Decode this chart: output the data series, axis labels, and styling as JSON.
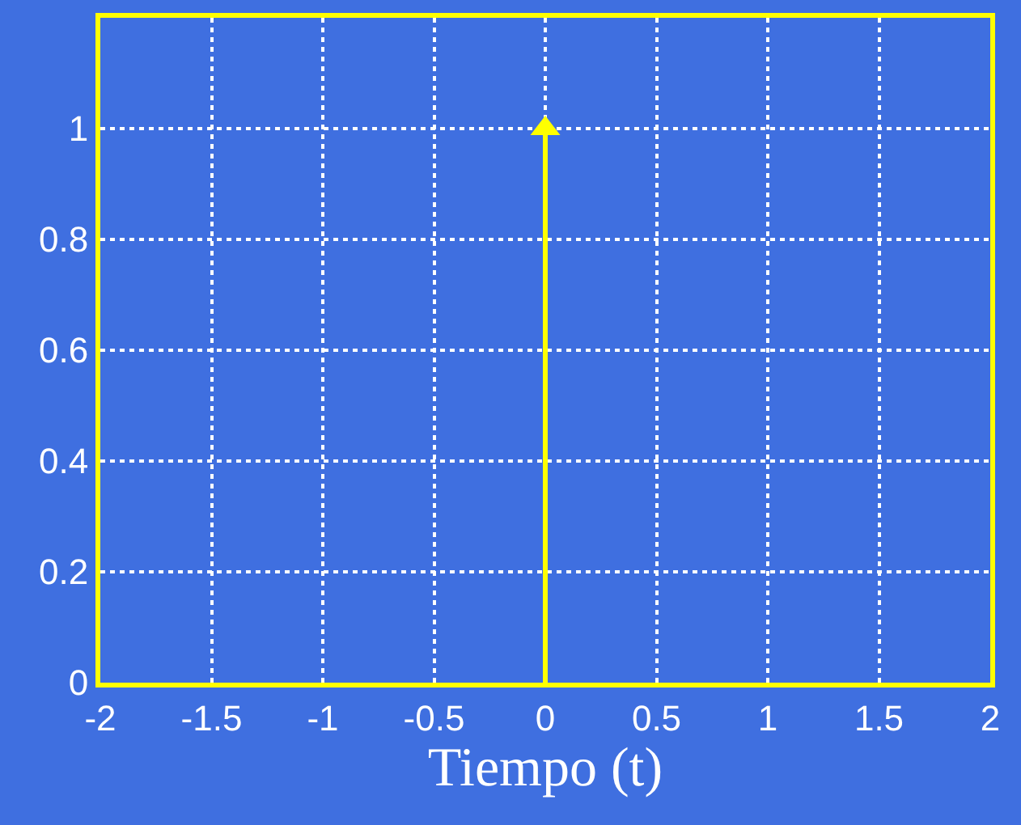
{
  "chart_data": {
    "type": "lollipop",
    "xlabel": "Tiempo (t)",
    "x": [
      0
    ],
    "series": [
      {
        "color": "#ffff00",
        "values": [
          1
        ]
      }
    ],
    "marker": "triangle",
    "line_style": "solid",
    "xlim": [
      -2,
      2
    ],
    "xticks": [
      -2,
      -1.5,
      -1,
      -0.5,
      0,
      0.5,
      1,
      1.5,
      2
    ],
    "ylim": [
      0,
      1.2
    ],
    "yticks": [
      0,
      0.2,
      0.4,
      0.6,
      0.8,
      1
    ],
    "grid": true
  }
}
